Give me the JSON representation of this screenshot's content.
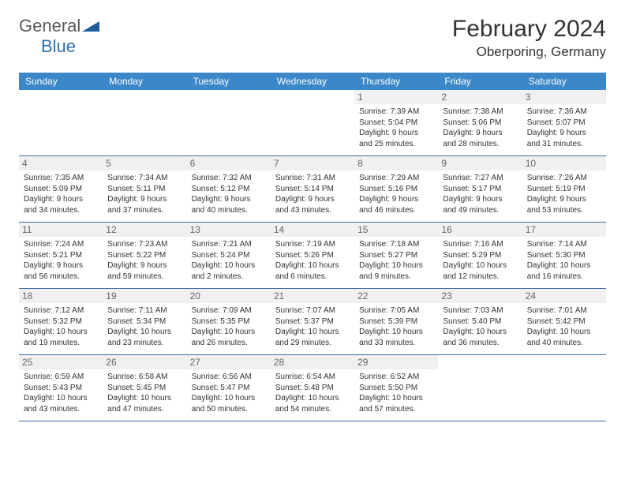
{
  "logo": {
    "general": "General",
    "blue": "Blue"
  },
  "title": {
    "month_year": "February 2024",
    "location": "Oberporing, Germany"
  },
  "colors": {
    "header_bg": "#3b87c8",
    "header_text": "#ffffff",
    "daynum_bg": "#f0f0f0",
    "daynum_text": "#666666",
    "border": "#3b6fa0",
    "body_text": "#333333",
    "logo_general": "#5a5a5a",
    "logo_blue": "#2f6fa8",
    "logo_triangle": "#1f5c9e"
  },
  "day_headers": [
    "Sunday",
    "Monday",
    "Tuesday",
    "Wednesday",
    "Thursday",
    "Friday",
    "Saturday"
  ],
  "weeks": [
    [
      {
        "n": "",
        "lines": []
      },
      {
        "n": "",
        "lines": []
      },
      {
        "n": "",
        "lines": []
      },
      {
        "n": "",
        "lines": []
      },
      {
        "n": "1",
        "lines": [
          "Sunrise: 7:39 AM",
          "Sunset: 5:04 PM",
          "Daylight: 9 hours",
          "and 25 minutes."
        ]
      },
      {
        "n": "2",
        "lines": [
          "Sunrise: 7:38 AM",
          "Sunset: 5:06 PM",
          "Daylight: 9 hours",
          "and 28 minutes."
        ]
      },
      {
        "n": "3",
        "lines": [
          "Sunrise: 7:36 AM",
          "Sunset: 5:07 PM",
          "Daylight: 9 hours",
          "and 31 minutes."
        ]
      }
    ],
    [
      {
        "n": "4",
        "lines": [
          "Sunrise: 7:35 AM",
          "Sunset: 5:09 PM",
          "Daylight: 9 hours",
          "and 34 minutes."
        ]
      },
      {
        "n": "5",
        "lines": [
          "Sunrise: 7:34 AM",
          "Sunset: 5:11 PM",
          "Daylight: 9 hours",
          "and 37 minutes."
        ]
      },
      {
        "n": "6",
        "lines": [
          "Sunrise: 7:32 AM",
          "Sunset: 5:12 PM",
          "Daylight: 9 hours",
          "and 40 minutes."
        ]
      },
      {
        "n": "7",
        "lines": [
          "Sunrise: 7:31 AM",
          "Sunset: 5:14 PM",
          "Daylight: 9 hours",
          "and 43 minutes."
        ]
      },
      {
        "n": "8",
        "lines": [
          "Sunrise: 7:29 AM",
          "Sunset: 5:16 PM",
          "Daylight: 9 hours",
          "and 46 minutes."
        ]
      },
      {
        "n": "9",
        "lines": [
          "Sunrise: 7:27 AM",
          "Sunset: 5:17 PM",
          "Daylight: 9 hours",
          "and 49 minutes."
        ]
      },
      {
        "n": "10",
        "lines": [
          "Sunrise: 7:26 AM",
          "Sunset: 5:19 PM",
          "Daylight: 9 hours",
          "and 53 minutes."
        ]
      }
    ],
    [
      {
        "n": "11",
        "lines": [
          "Sunrise: 7:24 AM",
          "Sunset: 5:21 PM",
          "Daylight: 9 hours",
          "and 56 minutes."
        ]
      },
      {
        "n": "12",
        "lines": [
          "Sunrise: 7:23 AM",
          "Sunset: 5:22 PM",
          "Daylight: 9 hours",
          "and 59 minutes."
        ]
      },
      {
        "n": "13",
        "lines": [
          "Sunrise: 7:21 AM",
          "Sunset: 5:24 PM",
          "Daylight: 10 hours",
          "and 2 minutes."
        ]
      },
      {
        "n": "14",
        "lines": [
          "Sunrise: 7:19 AM",
          "Sunset: 5:26 PM",
          "Daylight: 10 hours",
          "and 6 minutes."
        ]
      },
      {
        "n": "15",
        "lines": [
          "Sunrise: 7:18 AM",
          "Sunset: 5:27 PM",
          "Daylight: 10 hours",
          "and 9 minutes."
        ]
      },
      {
        "n": "16",
        "lines": [
          "Sunrise: 7:16 AM",
          "Sunset: 5:29 PM",
          "Daylight: 10 hours",
          "and 12 minutes."
        ]
      },
      {
        "n": "17",
        "lines": [
          "Sunrise: 7:14 AM",
          "Sunset: 5:30 PM",
          "Daylight: 10 hours",
          "and 16 minutes."
        ]
      }
    ],
    [
      {
        "n": "18",
        "lines": [
          "Sunrise: 7:12 AM",
          "Sunset: 5:32 PM",
          "Daylight: 10 hours",
          "and 19 minutes."
        ]
      },
      {
        "n": "19",
        "lines": [
          "Sunrise: 7:11 AM",
          "Sunset: 5:34 PM",
          "Daylight: 10 hours",
          "and 23 minutes."
        ]
      },
      {
        "n": "20",
        "lines": [
          "Sunrise: 7:09 AM",
          "Sunset: 5:35 PM",
          "Daylight: 10 hours",
          "and 26 minutes."
        ]
      },
      {
        "n": "21",
        "lines": [
          "Sunrise: 7:07 AM",
          "Sunset: 5:37 PM",
          "Daylight: 10 hours",
          "and 29 minutes."
        ]
      },
      {
        "n": "22",
        "lines": [
          "Sunrise: 7:05 AM",
          "Sunset: 5:39 PM",
          "Daylight: 10 hours",
          "and 33 minutes."
        ]
      },
      {
        "n": "23",
        "lines": [
          "Sunrise: 7:03 AM",
          "Sunset: 5:40 PM",
          "Daylight: 10 hours",
          "and 36 minutes."
        ]
      },
      {
        "n": "24",
        "lines": [
          "Sunrise: 7:01 AM",
          "Sunset: 5:42 PM",
          "Daylight: 10 hours",
          "and 40 minutes."
        ]
      }
    ],
    [
      {
        "n": "25",
        "lines": [
          "Sunrise: 6:59 AM",
          "Sunset: 5:43 PM",
          "Daylight: 10 hours",
          "and 43 minutes."
        ]
      },
      {
        "n": "26",
        "lines": [
          "Sunrise: 6:58 AM",
          "Sunset: 5:45 PM",
          "Daylight: 10 hours",
          "and 47 minutes."
        ]
      },
      {
        "n": "27",
        "lines": [
          "Sunrise: 6:56 AM",
          "Sunset: 5:47 PM",
          "Daylight: 10 hours",
          "and 50 minutes."
        ]
      },
      {
        "n": "28",
        "lines": [
          "Sunrise: 6:54 AM",
          "Sunset: 5:48 PM",
          "Daylight: 10 hours",
          "and 54 minutes."
        ]
      },
      {
        "n": "29",
        "lines": [
          "Sunrise: 6:52 AM",
          "Sunset: 5:50 PM",
          "Daylight: 10 hours",
          "and 57 minutes."
        ]
      },
      {
        "n": "",
        "lines": []
      },
      {
        "n": "",
        "lines": []
      }
    ]
  ]
}
